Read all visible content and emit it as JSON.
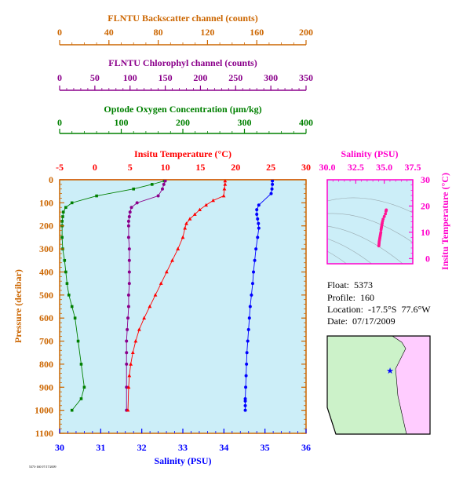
{
  "colors": {
    "backscatter": "#cc6600",
    "chlorophyll": "#8b008b",
    "oxygen": "#008000",
    "temperature": "#ff0000",
    "salinity": "#0000ff",
    "ts_points": "#ff1493",
    "ts_axis": "#ff00cc",
    "plot_bg": "#cceef8",
    "frame": "#cc6600",
    "map_land": "#ffccff",
    "map_ocean": "#ccf2c9",
    "map_marker": "#0000ff"
  },
  "info": {
    "float": "Float:  5373",
    "profile": "Profile:  160",
    "location": "Location:  -17.5°S  77.6°W",
    "date": "Date:  07/17/2009"
  },
  "footer_code": "5373-160 07/17/2009",
  "chart_data": [
    {
      "type": "line",
      "title": "FLNTU Backscatter channel (counts)",
      "axis_only": true,
      "xlim": [
        0,
        200
      ],
      "ticks": [
        "0",
        "40",
        "80",
        "120",
        "160",
        "200"
      ]
    },
    {
      "type": "line",
      "title": "FLNTU Chlorophyl channel (counts)",
      "axis_only": true,
      "xlim": [
        0,
        350
      ],
      "ticks": [
        "0",
        "50",
        "100",
        "150",
        "200",
        "250",
        "300",
        "350"
      ]
    },
    {
      "type": "line",
      "title": "Optode Oxygen Concentration (µm/kg)",
      "xlim": [
        0,
        400
      ],
      "ticks": [
        "0",
        "100",
        "200",
        "300",
        "400"
      ],
      "series": [
        {
          "name": "Oxygen",
          "marker": "square",
          "x": [
            170,
            150,
            120,
            60,
            20,
            10,
            6,
            5,
            4,
            4,
            4,
            5,
            8,
            10,
            12,
            15,
            20,
            25,
            30,
            35,
            40,
            35,
            20
          ],
          "y": [
            5,
            20,
            40,
            70,
            100,
            120,
            140,
            160,
            180,
            200,
            250,
            300,
            350,
            400,
            450,
            500,
            550,
            600,
            700,
            800,
            900,
            950,
            1000
          ]
        }
      ]
    },
    {
      "type": "line",
      "title": "Insitu Temperature (°C)",
      "xlim": [
        -5,
        30
      ],
      "ticks": [
        "-5",
        "0",
        "5",
        "10",
        "15",
        "20",
        "25",
        "30"
      ],
      "series": [
        {
          "name": "Temperature",
          "marker": "triangle",
          "x": [
            18.5,
            18.5,
            18.4,
            18.3,
            16.8,
            15.8,
            14.9,
            14.2,
            13.5,
            13.0,
            12.8,
            12.5,
            11.8,
            11.0,
            10.2,
            9.4,
            8.6,
            7.8,
            7.0,
            6.3,
            5.8,
            5.4,
            5.1,
            4.9,
            4.8,
            4.7
          ],
          "y": [
            5,
            20,
            40,
            70,
            90,
            110,
            130,
            150,
            170,
            190,
            210,
            250,
            300,
            350,
            400,
            450,
            500,
            550,
            600,
            650,
            700,
            750,
            800,
            850,
            900,
            1000
          ]
        },
        {
          "name": "Chlorophyl",
          "marker": "circle",
          "x": [
            150,
            148,
            146,
            140,
            110,
            102,
            100,
            99,
            98,
            98,
            98,
            99,
            99,
            99,
            99,
            98,
            98,
            97,
            96,
            95,
            95,
            95,
            95,
            95
          ],
          "y": [
            5,
            20,
            40,
            70,
            100,
            120,
            140,
            160,
            180,
            200,
            250,
            300,
            350,
            400,
            450,
            500,
            550,
            600,
            650,
            700,
            750,
            800,
            900,
            1000
          ]
        }
      ]
    },
    {
      "type": "line",
      "title": "",
      "xlabel": "Salinity (PSU)",
      "ylabel": "Pressure (decibar)",
      "xlim": [
        30,
        36
      ],
      "ylim": [
        0,
        1100
      ],
      "xticks": [
        "30",
        "31",
        "32",
        "33",
        "34",
        "35",
        "36"
      ],
      "yticks": [
        "0",
        "100",
        "200",
        "300",
        "400",
        "500",
        "600",
        "700",
        "800",
        "900",
        "1000",
        "1100"
      ],
      "series": [
        {
          "name": "Salinity",
          "marker": "circle",
          "x": [
            35.18,
            35.18,
            35.17,
            35.15,
            34.85,
            34.8,
            34.8,
            34.82,
            34.84,
            34.85,
            34.82,
            34.78,
            34.75,
            34.72,
            34.7,
            34.67,
            34.64,
            34.62,
            34.6,
            34.58,
            34.56,
            34.55,
            34.54,
            34.53,
            34.52,
            34.52,
            34.52,
            34.52
          ],
          "y": [
            5,
            20,
            40,
            60,
            110,
            130,
            150,
            170,
            190,
            210,
            250,
            300,
            350,
            400,
            450,
            500,
            550,
            600,
            650,
            700,
            750,
            800,
            850,
            900,
            950,
            960,
            980,
            1000
          ]
        }
      ]
    },
    {
      "type": "scatter",
      "title": "Salinity (PSU)",
      "ylabel": "Insitu Temperature (°C)",
      "xlim": [
        30,
        37.5
      ],
      "ylim": [
        -2,
        30
      ],
      "xticks": [
        "30.0",
        "32.5",
        "35.0",
        "37.5"
      ],
      "yticks": [
        "0",
        "10",
        "20",
        "30"
      ],
      "series": [
        {
          "name": "T-S",
          "x": [
            35.18,
            35.17,
            35.15,
            35.1,
            35.0,
            34.9,
            34.85,
            34.82,
            34.8,
            34.78,
            34.76,
            34.74,
            34.72,
            34.7,
            34.68,
            34.66,
            34.64,
            34.62,
            34.6,
            34.58,
            34.56,
            34.55,
            34.54,
            34.53,
            34.52
          ],
          "y": [
            18.5,
            18.4,
            18.0,
            17.0,
            16.0,
            15.0,
            14.2,
            13.5,
            13.0,
            12.5,
            12.0,
            11.5,
            11.0,
            10.0,
            9.5,
            9.0,
            8.5,
            8.0,
            7.5,
            7.0,
            6.5,
            6.0,
            5.5,
            5.0,
            4.8
          ]
        }
      ]
    }
  ]
}
